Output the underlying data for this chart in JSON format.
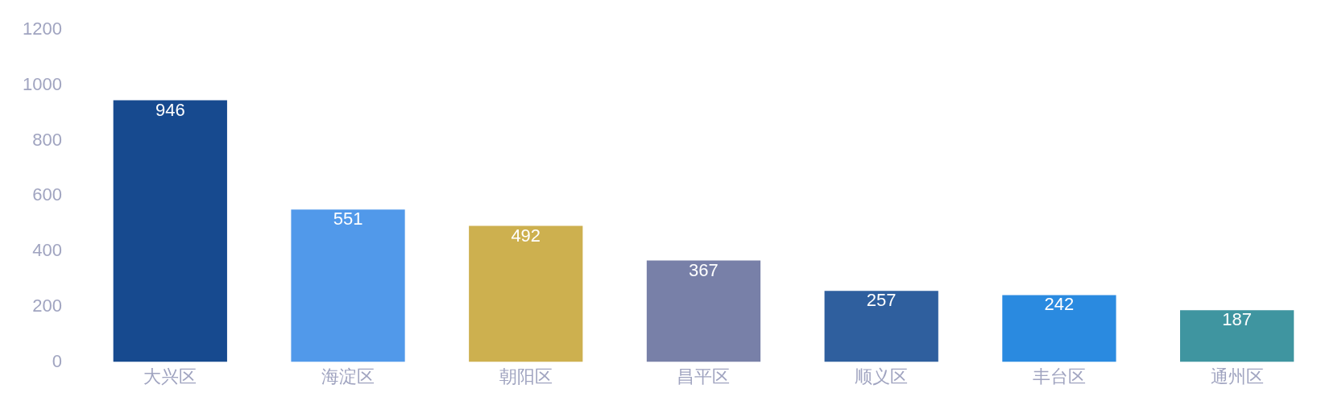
{
  "chart_data": {
    "type": "bar",
    "categories": [
      "大兴区",
      "海淀区",
      "朝阳区",
      "昌平区",
      "顺义区",
      "丰台区",
      "通州区"
    ],
    "values": [
      946,
      551,
      492,
      367,
      257,
      242,
      187
    ],
    "colors": [
      "#174a8f",
      "#5199ea",
      "#cdb04f",
      "#7880a8",
      "#2f5f9e",
      "#2a8ae0",
      "#3f95a0"
    ],
    "ylim": [
      0,
      1200
    ],
    "yticks": [
      0,
      200,
      400,
      600,
      800,
      1000,
      1200
    ],
    "grid": false,
    "data_labels": true
  }
}
